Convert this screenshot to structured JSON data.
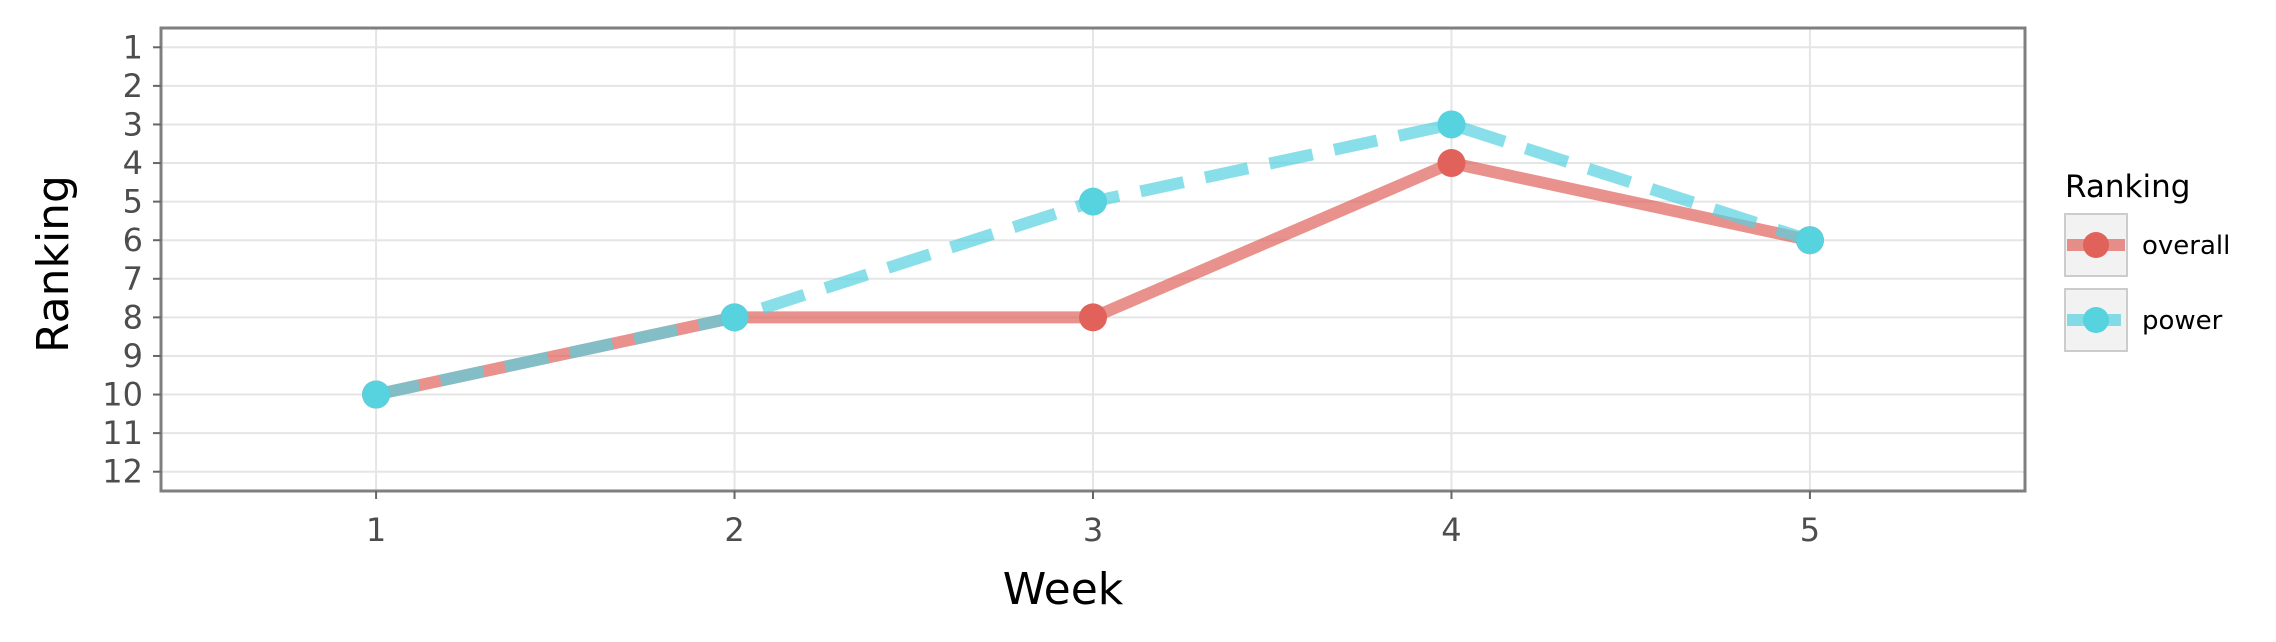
{
  "chart_data": {
    "type": "line",
    "xlabel": "Week",
    "ylabel": "Ranking",
    "x": [
      1,
      2,
      3,
      4,
      5
    ],
    "xlim": [
      0.4,
      5.6
    ],
    "ylim": [
      12.5,
      0.5
    ],
    "y_reversed": true,
    "x_ticks": [
      "1",
      "2",
      "3",
      "4",
      "5"
    ],
    "y_ticks": [
      "1",
      "2",
      "3",
      "4",
      "5",
      "6",
      "7",
      "8",
      "9",
      "10",
      "11",
      "12"
    ],
    "grid": true,
    "legend_title": "Ranking",
    "legend_position": "right",
    "series": [
      {
        "name": "overall",
        "values": [
          10,
          8,
          8,
          4,
          6
        ],
        "color": "#E0625B",
        "line_style": "solid"
      },
      {
        "name": "power",
        "values": [
          10,
          8,
          5,
          3,
          6
        ],
        "color": "#57D2DF",
        "line_style": "dashed"
      }
    ]
  }
}
